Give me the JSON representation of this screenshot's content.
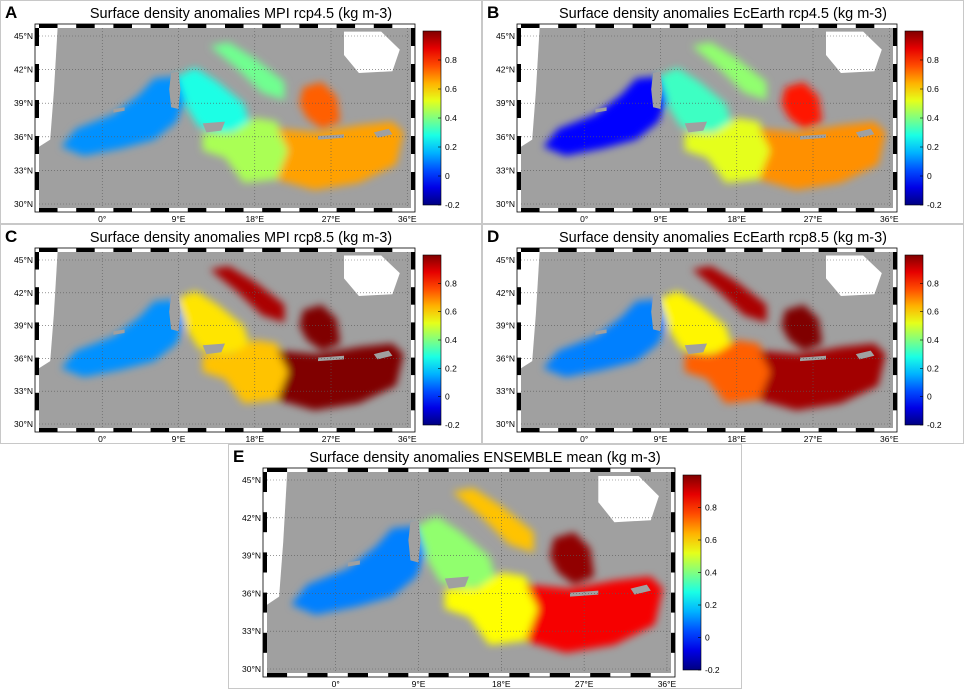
{
  "panels": [
    {
      "letter": "A",
      "title": "Surface density anomalies MPI rcp4.5 (kg m-3)",
      "scenario": "mpi45"
    },
    {
      "letter": "B",
      "title": "Surface density anomalies EcEarth rcp4.5 (kg m-3)",
      "scenario": "ec45"
    },
    {
      "letter": "C",
      "title": "Surface density anomalies MPI rcp8.5 (kg m-3)",
      "scenario": "mpi85"
    },
    {
      "letter": "D",
      "title": "Surface density anomalies EcEarth rcp8.5 (kg m-3)",
      "scenario": "ec85"
    },
    {
      "letter": "E",
      "title": "Surface density anomalies ENSEMBLE mean (kg m-3)",
      "scenario": "ens"
    }
  ],
  "axes": {
    "lat_labels": [
      "45°N",
      "42°N",
      "39°N",
      "36°N",
      "33°N",
      "30°N"
    ],
    "lon_labels": [
      "0°",
      "9°E",
      "18°E",
      "27°E",
      "36°E"
    ]
  },
  "colorbar": {
    "ticks": [
      "0.8",
      "0.6",
      "0.4",
      "0.2",
      "0",
      "-0.2"
    ],
    "range": [
      -0.2,
      1.0
    ]
  },
  "colors": {
    "land": "#a0a0a0",
    "ocean_outside": "#ffffff",
    "frame_dark": "#000000",
    "grid": "#5a5a5a"
  },
  "scenario_values": {
    "mpi45": {
      "west": 0.12,
      "tyrrhenian": 0.28,
      "adriatic": 0.38,
      "ionian": 0.45,
      "levantine": 0.66,
      "aegean": 0.74
    },
    "ec45": {
      "west": -0.05,
      "tyrrhenian": 0.32,
      "adriatic": 0.42,
      "ionian": 0.52,
      "levantine": 0.68,
      "aegean": 0.82
    },
    "mpi85": {
      "west": 0.12,
      "tyrrhenian": 0.58,
      "adriatic": 0.95,
      "ionian": 0.62,
      "levantine": 1.0,
      "aegean": 1.0
    },
    "ec85": {
      "west": 0.1,
      "tyrrhenian": 0.56,
      "adriatic": 0.95,
      "ionian": 0.74,
      "levantine": 0.96,
      "aegean": 1.0
    },
    "ens": {
      "west": 0.1,
      "tyrrhenian": 0.42,
      "adriatic": 0.62,
      "ionian": 0.55,
      "levantine": 0.86,
      "aegean": 0.98
    }
  }
}
